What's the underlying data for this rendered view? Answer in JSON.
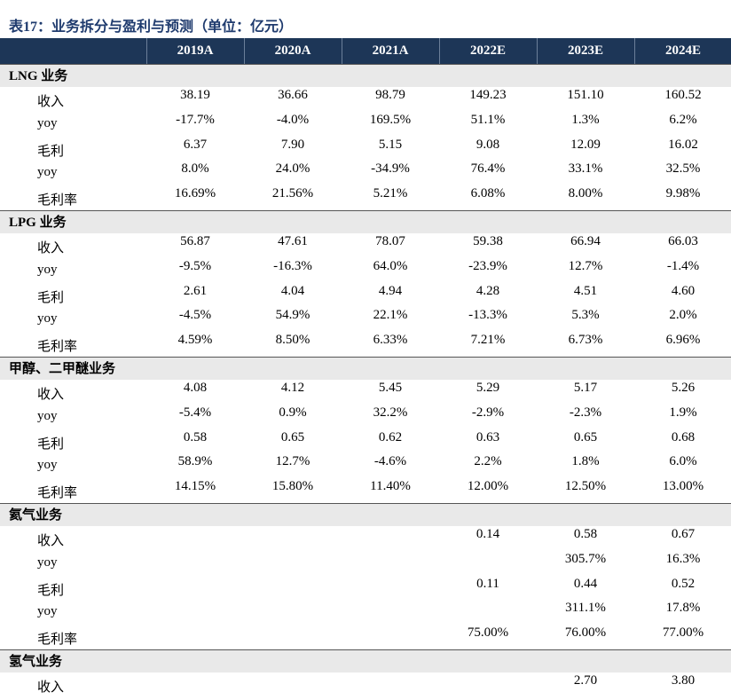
{
  "title": "表17：业务拆分与盈利与预测（单位：亿元）",
  "columns": [
    "2019A",
    "2020A",
    "2021A",
    "2022E",
    "2023E",
    "2024E"
  ],
  "sections": [
    {
      "name": "LNG 业务",
      "rows": [
        {
          "label": "收入",
          "values": [
            "38.19",
            "36.66",
            "98.79",
            "149.23",
            "151.10",
            "160.52"
          ]
        },
        {
          "label": "yoy",
          "values": [
            "-17.7%",
            "-4.0%",
            "169.5%",
            "51.1%",
            "1.3%",
            "6.2%"
          ]
        },
        {
          "label": "毛利",
          "values": [
            "6.37",
            "7.90",
            "5.15",
            "9.08",
            "12.09",
            "16.02"
          ]
        },
        {
          "label": "yoy",
          "values": [
            "8.0%",
            "24.0%",
            "-34.9%",
            "76.4%",
            "33.1%",
            "32.5%"
          ]
        },
        {
          "label": "毛利率",
          "values": [
            "16.69%",
            "21.56%",
            "5.21%",
            "6.08%",
            "8.00%",
            "9.98%"
          ]
        }
      ]
    },
    {
      "name": "LPG 业务",
      "rows": [
        {
          "label": "收入",
          "values": [
            "56.87",
            "47.61",
            "78.07",
            "59.38",
            "66.94",
            "66.03"
          ]
        },
        {
          "label": "yoy",
          "values": [
            "-9.5%",
            "-16.3%",
            "64.0%",
            "-23.9%",
            "12.7%",
            "-1.4%"
          ]
        },
        {
          "label": "毛利",
          "values": [
            "2.61",
            "4.04",
            "4.94",
            "4.28",
            "4.51",
            "4.60"
          ]
        },
        {
          "label": "yoy",
          "values": [
            "-4.5%",
            "54.9%",
            "22.1%",
            "-13.3%",
            "5.3%",
            "2.0%"
          ]
        },
        {
          "label": "毛利率",
          "values": [
            "4.59%",
            "8.50%",
            "6.33%",
            "7.21%",
            "6.73%",
            "6.96%"
          ]
        }
      ]
    },
    {
      "name": "甲醇、二甲醚业务",
      "rows": [
        {
          "label": "收入",
          "values": [
            "4.08",
            "4.12",
            "5.45",
            "5.29",
            "5.17",
            "5.26"
          ]
        },
        {
          "label": "yoy",
          "values": [
            "-5.4%",
            "0.9%",
            "32.2%",
            "-2.9%",
            "-2.3%",
            "1.9%"
          ]
        },
        {
          "label": "毛利",
          "values": [
            "0.58",
            "0.65",
            "0.62",
            "0.63",
            "0.65",
            "0.68"
          ]
        },
        {
          "label": "yoy",
          "values": [
            "58.9%",
            "12.7%",
            "-4.6%",
            "2.2%",
            "1.8%",
            "6.0%"
          ]
        },
        {
          "label": "毛利率",
          "values": [
            "14.15%",
            "15.80%",
            "11.40%",
            "12.00%",
            "12.50%",
            "13.00%"
          ]
        }
      ]
    },
    {
      "name": "氦气业务",
      "rows": [
        {
          "label": "收入",
          "values": [
            null,
            null,
            null,
            "0.14",
            "0.58",
            "0.67"
          ]
        },
        {
          "label": "yoy",
          "values": [
            null,
            null,
            null,
            null,
            "305.7%",
            "16.3%"
          ]
        },
        {
          "label": "毛利",
          "values": [
            null,
            null,
            null,
            "0.11",
            "0.44",
            "0.52"
          ]
        },
        {
          "label": "yoy",
          "values": [
            null,
            null,
            null,
            null,
            "311.1%",
            "17.8%"
          ]
        },
        {
          "label": "毛利率",
          "values": [
            null,
            null,
            null,
            "75.00%",
            "76.00%",
            "77.00%"
          ]
        }
      ]
    },
    {
      "name": "氢气业务",
      "rows": [
        {
          "label": "收入",
          "values": [
            null,
            null,
            null,
            null,
            "2.70",
            "3.80"
          ]
        }
      ]
    }
  ]
}
